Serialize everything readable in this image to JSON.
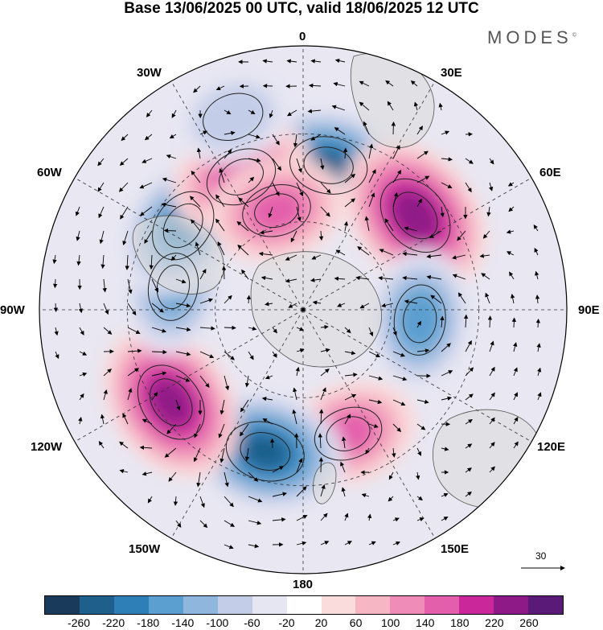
{
  "title": "Base 13/06/2025 00 UTC, valid 18/06/2025 12 UTC",
  "brand": "MODES",
  "brand_mark": "©",
  "longitude_labels": {
    "top": "0",
    "top_right": "30E",
    "right_upper": "60E",
    "right": "90E",
    "right_lower": "120E",
    "bottom_right": "150E",
    "bottom": "180",
    "bottom_left": "150W",
    "left_lower": "120W",
    "left": "90W",
    "left_upper": "60W",
    "top_left": "30W"
  },
  "vector_reference": "30",
  "colorbar": {
    "colors": [
      "#1a3a5c",
      "#1f5f8b",
      "#2e7fb8",
      "#5a9fcf",
      "#8fb6dd",
      "#c3cde8",
      "#e6e5f2",
      "#ffffff",
      "#fbdcdc",
      "#f6b6c4",
      "#ef8cb7",
      "#e35eab",
      "#c9279a",
      "#8e1a88",
      "#5a1a78"
    ],
    "ticks": [
      "-260",
      "-220",
      "-180",
      "-140",
      "-100",
      "-60",
      "-20",
      "20",
      "60",
      "100",
      "140",
      "180",
      "220",
      "260"
    ]
  },
  "anomalies": [
    {
      "lat": -40,
      "lon": 10,
      "value": -220
    },
    {
      "lat": -40,
      "lon": 50,
      "value": 250
    },
    {
      "lat": -50,
      "lon": 95,
      "value": -160
    },
    {
      "lat": -45,
      "lon": 160,
      "value": 150
    },
    {
      "lat": -40,
      "lon": 195,
      "value": -230
    },
    {
      "lat": -35,
      "lon": 235,
      "value": 240
    },
    {
      "lat": -45,
      "lon": 280,
      "value": -140
    },
    {
      "lat": -40,
      "lon": 305,
      "value": -190
    },
    {
      "lat": -40,
      "lon": 335,
      "value": 170
    },
    {
      "lat": -55,
      "lon": 345,
      "value": 150
    },
    {
      "lat": -20,
      "lon": 340,
      "value": -90
    }
  ]
}
